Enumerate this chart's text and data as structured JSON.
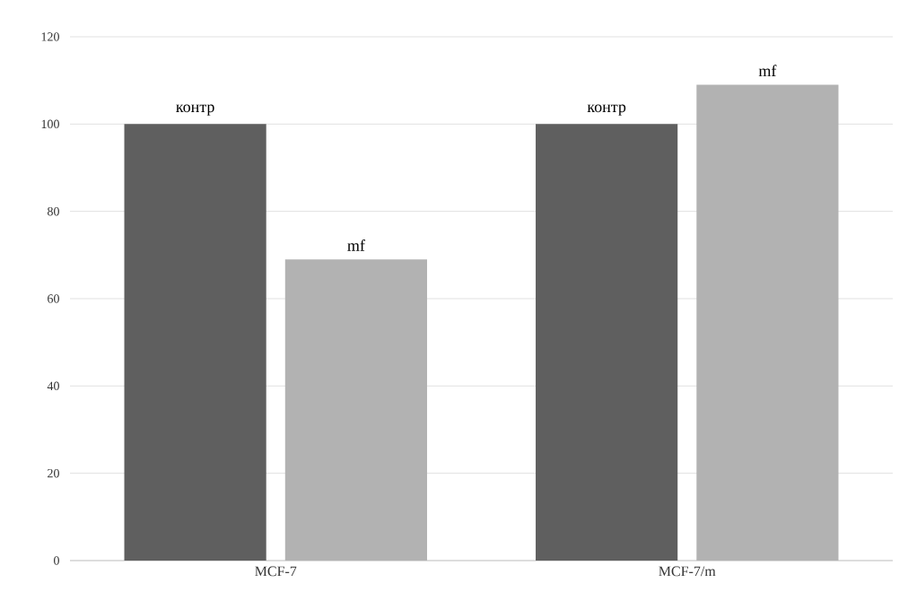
{
  "chart_data": {
    "type": "bar",
    "categories": [
      "MCF-7",
      "MCF-7/m"
    ],
    "series": [
      {
        "name": "контр",
        "color": "#5f5f5f",
        "values": [
          100,
          100
        ]
      },
      {
        "name": "mf",
        "color": "#b2b2b2",
        "values": [
          69,
          109
        ]
      }
    ],
    "ylim": [
      0,
      120
    ],
    "yticks": [
      0,
      20,
      40,
      60,
      80,
      100,
      120
    ],
    "grid": "y"
  }
}
